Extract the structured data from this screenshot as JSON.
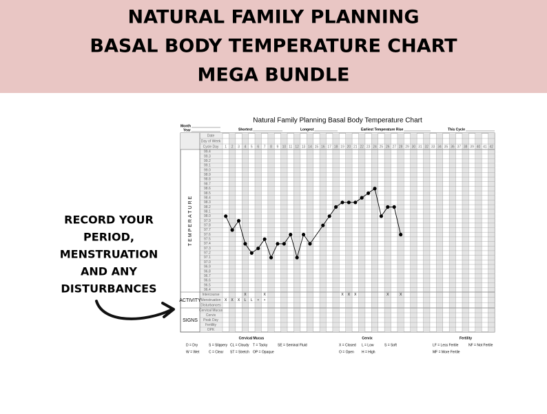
{
  "banner": {
    "lines": [
      "NATURAL FAMILY PLANNING",
      "BASAL BODY TEMPERATURE CHART",
      "MEGA BUNDLE"
    ]
  },
  "callout": {
    "lines": [
      "RECORD YOUR",
      "PERIOD,",
      "MENSTRUATION",
      "AND ANY",
      "DISTURBANCES"
    ]
  },
  "sheet": {
    "title": "Natural Family Planning Basal Body Temperature Chart",
    "fields": [
      "Month",
      "Year",
      "Shortest",
      "Longest",
      "Earliest Temperature Rise",
      "This Cycle"
    ],
    "header_rows": [
      "Date",
      "Day of Week",
      "Cycle Day"
    ],
    "cycle_days": [
      1,
      2,
      3,
      4,
      5,
      6,
      7,
      8,
      9,
      10,
      11,
      12,
      13,
      14,
      15,
      16,
      17,
      18,
      19,
      20,
      21,
      22,
      23,
      24,
      25,
      26,
      27,
      28,
      29,
      30,
      31,
      32,
      33,
      34,
      35,
      36,
      37,
      38,
      39,
      40,
      41,
      42
    ],
    "groups": {
      "temperature": "TEMPERATURE",
      "activity": "ACTIVITY",
      "signs": "SIGNS"
    },
    "temperature": {
      "ticks": [
        99.4,
        99.3,
        99.2,
        99.1,
        {
          "value": 99.0,
          "label": "99.0"
        },
        98.9,
        98.8,
        98.7,
        98.6,
        98.5,
        98.4,
        98.3,
        98.2,
        98.1,
        {
          "value": 98.0,
          "label": "98.0"
        },
        97.9,
        97.8,
        97.7,
        97.6,
        97.5,
        97.4,
        97.3,
        97.2,
        97.1,
        {
          "value": 97.0,
          "label": "97.0"
        },
        96.9,
        96.8,
        96.7,
        96.6,
        96.5,
        96.4
      ],
      "days": [
        1,
        2,
        3,
        4,
        5,
        6,
        7,
        8,
        9,
        10,
        11,
        12,
        13,
        14,
        16,
        17,
        18,
        19,
        20,
        21,
        22,
        23,
        24,
        25,
        26,
        27,
        28
      ],
      "values": [
        98.0,
        97.7,
        97.9,
        97.4,
        97.2,
        97.3,
        97.5,
        97.1,
        97.4,
        97.4,
        97.6,
        97.1,
        97.6,
        97.4,
        97.8,
        98.0,
        98.2,
        98.3,
        98.3,
        98.3,
        98.4,
        98.5,
        98.6,
        98.0,
        98.2,
        98.2,
        97.6
      ]
    },
    "activity": {
      "rows": [
        "Intercourse",
        "Menstruation",
        "Disturbances"
      ],
      "intercourse": [
        null,
        null,
        null,
        "X",
        null,
        null,
        "X",
        null,
        null,
        null,
        null,
        null,
        null,
        null,
        null,
        null,
        null,
        null,
        "X",
        "X",
        "X",
        null,
        null,
        null,
        null,
        "X",
        null,
        "X"
      ],
      "menstruation": [
        "X",
        "X",
        "X",
        "L",
        "L",
        "•",
        "•"
      ]
    },
    "signs": {
      "rows": [
        "Cervical Mucus",
        "Cervix",
        "Peak Day",
        "Fertility",
        "OPK"
      ]
    }
  },
  "legend": {
    "sections": [
      {
        "title": "Cervical Mucus",
        "rows": [
          [
            "D = Dry",
            "S = Slippery",
            "CL = Cloudy",
            "T = Tacky",
            "SE = Seminal Fluid"
          ],
          [
            "W = Wet",
            "C = Clear",
            "ST = Stretch",
            "OP = Opaque"
          ]
        ]
      },
      {
        "title": "Cervix",
        "rows": [
          [
            "X = Closed",
            "L = Low",
            "S = Soft"
          ],
          [
            "O = Open",
            "H = High"
          ]
        ]
      },
      {
        "title": "Fertility",
        "rows": [
          [
            "LF = Less Fertile",
            "NF = Not Fertile"
          ],
          [
            "MF = More Fertile"
          ]
        ]
      }
    ]
  }
}
